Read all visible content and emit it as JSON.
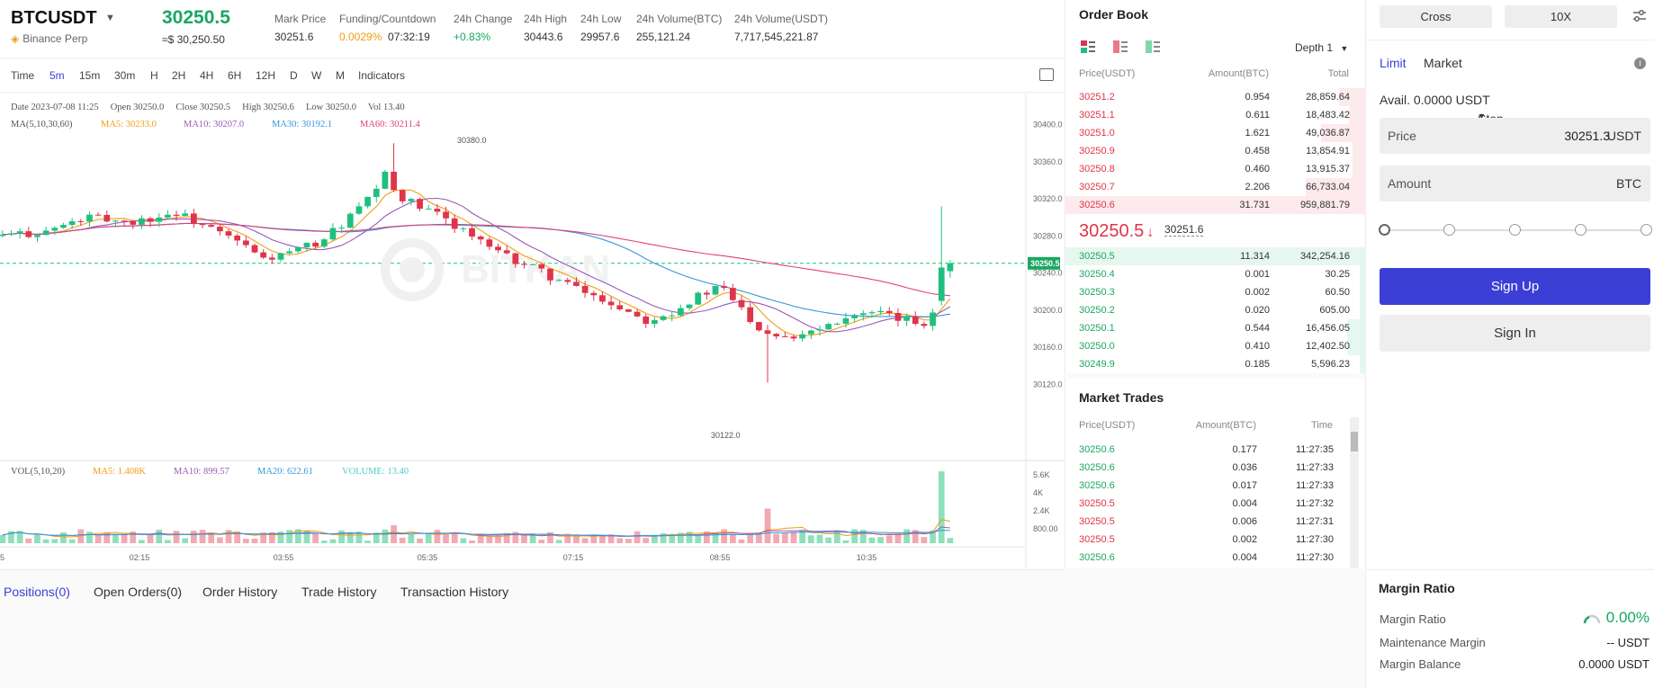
{
  "header": {
    "symbol": "BTCUSDT",
    "exchange": "Binance Perp",
    "last_price": "30250.5",
    "last_price_usd": "≈$ 30,250.50",
    "mark_price_label": "Mark Price",
    "mark_price": "30251.6",
    "funding_label": "Funding/Countdown",
    "funding_rate": "0.0029%",
    "countdown": "07:32:19",
    "change_label": "24h Change",
    "change": "+0.83%",
    "high_label": "24h High",
    "high": "30443.6",
    "low_label": "24h Low",
    "low": "29957.6",
    "vol_btc_label": "24h Volume(BTC)",
    "vol_btc": "255,121.24",
    "vol_usdt_label": "24h Volume(USDT)",
    "vol_usdt": "7,717,545,221.87"
  },
  "toolbar": {
    "intervals": [
      "Time",
      "5m",
      "15m",
      "30m",
      "H",
      "2H",
      "4H",
      "6H",
      "12H",
      "D",
      "W",
      "M",
      "Indicators"
    ],
    "active": "5m"
  },
  "chart": {
    "info": "Date 2023-07-08 11:25     Open 30250.0     Close 30250.5     High 30250.6     Low 30250.0     Vol 13.40",
    "ma_label": "MA(5,10,30,60)",
    "ma5": "MA5: 30233.0",
    "ma10": "MA10: 30207.0",
    "ma30": "MA30: 30192.1",
    "ma60": "MA60: 30211.4",
    "vol_label": "VOL(5,10,20)",
    "vol_ma5": "MA5: 1.408K",
    "vol_ma10": "MA10: 899.57",
    "vol_ma20": "MA20: 622.61",
    "vol_volume": "VOLUME: 13.40",
    "price_ticks": [
      "30400.0",
      "30360.0",
      "30320.0",
      "30280.0",
      "30240.0",
      "30200.0",
      "30160.0",
      "30120.0"
    ],
    "vol_ticks": [
      "5.6K",
      "4K",
      "2.4K",
      "800.00"
    ],
    "time_ticks": [
      "5",
      "02:15",
      "03:55",
      "05:35",
      "07:15",
      "08:55",
      "10:35"
    ],
    "current_tag": "30250.5",
    "high_marker": "30380.0",
    "low_marker": "30122.0",
    "watermark": "BITKAN",
    "colors": {
      "up": "#1fc07f",
      "down": "#e0344a",
      "ma5": "#f39c12",
      "ma10": "#9b59b6",
      "ma30": "#3498db",
      "ma60": "#e0407a"
    }
  },
  "bottom_tabs": [
    "Positions(0)",
    "Open Orders(0)",
    "Order History",
    "Trade History",
    "Transaction History"
  ],
  "order_book": {
    "title": "Order Book",
    "depth": "Depth 1",
    "col_price": "Price(USDT)",
    "col_amount": "Amount(BTC)",
    "col_total": "Total",
    "asks": [
      {
        "price": "30251.2",
        "amount": "0.954",
        "total": "28,859.64"
      },
      {
        "price": "30251.1",
        "amount": "0.611",
        "total": "18,483.42"
      },
      {
        "price": "30251.0",
        "amount": "1.621",
        "total": "49,036.87"
      },
      {
        "price": "30250.9",
        "amount": "0.458",
        "total": "13,854.91"
      },
      {
        "price": "30250.8",
        "amount": "0.460",
        "total": "13,915.37"
      },
      {
        "price": "30250.7",
        "amount": "2.206",
        "total": "66,733.04"
      },
      {
        "price": "30250.6",
        "amount": "31.731",
        "total": "959,881.79"
      }
    ],
    "mid_price": "30250.5",
    "mid_arrow": "↓",
    "mid_mark": "30251.6",
    "bids": [
      {
        "price": "30250.5",
        "amount": "11.314",
        "total": "342,254.16"
      },
      {
        "price": "30250.4",
        "amount": "0.001",
        "total": "30.25"
      },
      {
        "price": "30250.3",
        "amount": "0.002",
        "total": "60.50"
      },
      {
        "price": "30250.2",
        "amount": "0.020",
        "total": "605.00"
      },
      {
        "price": "30250.1",
        "amount": "0.544",
        "total": "16,456.05"
      },
      {
        "price": "30250.0",
        "amount": "0.410",
        "total": "12,402.50"
      },
      {
        "price": "30249.9",
        "amount": "0.185",
        "total": "5,596.23"
      }
    ]
  },
  "market_trades": {
    "title": "Market Trades",
    "col_price": "Price(USDT)",
    "col_amount": "Amount(BTC)",
    "col_time": "Time",
    "rows": [
      {
        "price": "30250.6",
        "amount": "0.177",
        "time": "11:27:35",
        "side": "buy"
      },
      {
        "price": "30250.6",
        "amount": "0.036",
        "time": "11:27:33",
        "side": "buy"
      },
      {
        "price": "30250.6",
        "amount": "0.017",
        "time": "11:27:33",
        "side": "buy"
      },
      {
        "price": "30250.5",
        "amount": "0.004",
        "time": "11:27:32",
        "side": "sell"
      },
      {
        "price": "30250.5",
        "amount": "0.006",
        "time": "11:27:31",
        "side": "sell"
      },
      {
        "price": "30250.5",
        "amount": "0.002",
        "time": "11:27:30",
        "side": "sell"
      },
      {
        "price": "30250.6",
        "amount": "0.004",
        "time": "11:27:30",
        "side": "buy"
      }
    ]
  },
  "order_form": {
    "margin_mode": "Cross",
    "leverage": "10X",
    "tabs": [
      "Limit",
      "Market",
      "Stop-Limit"
    ],
    "active_tab": "Limit",
    "avail": "Avail. 0.0000 USDT",
    "price_label": "Price",
    "price_value": "30251.3",
    "price_unit": "USDT",
    "amount_label": "Amount",
    "amount_unit": "BTC",
    "slider_value": 0,
    "signup": "Sign Up",
    "signin": "Sign In"
  },
  "margin": {
    "title": "Margin Ratio",
    "ratio_label": "Margin Ratio",
    "ratio_value": "0.00%",
    "maint_label": "Maintenance Margin",
    "maint_value": "-- USDT",
    "balance_label": "Margin Balance",
    "balance_value": "0.0000 USDT"
  }
}
